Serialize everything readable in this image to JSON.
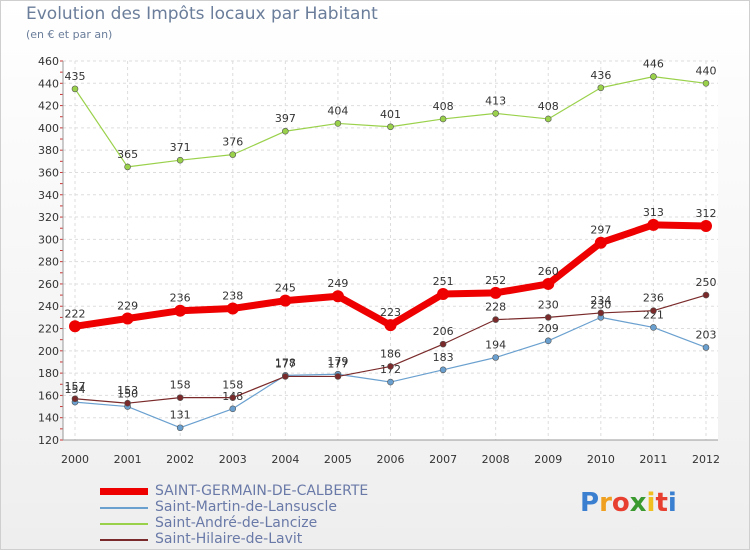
{
  "chart_data": {
    "type": "line",
    "title": "Evolution des Impôts locaux par Habitant",
    "subtitle": "(en € et par an)",
    "x": [
      "2000",
      "2001",
      "2002",
      "2003",
      "2004",
      "2005",
      "2006",
      "2007",
      "2008",
      "2009",
      "2010",
      "2011",
      "2012"
    ],
    "ylim": [
      120,
      460
    ],
    "yticks": [
      120,
      140,
      160,
      180,
      200,
      220,
      240,
      260,
      280,
      300,
      320,
      340,
      360,
      380,
      400,
      420,
      440,
      460
    ],
    "grid": true,
    "legend_position": "bottom-left",
    "series": [
      {
        "name": "SAINT-GERMAIN-DE-CALBERTE",
        "color": "#ee0000",
        "values": [
          222,
          229,
          236,
          238,
          245,
          249,
          223,
          251,
          252,
          260,
          297,
          313,
          312
        ]
      },
      {
        "name": "Saint-Martin-de-Lansuscle",
        "color": "#6aa0cf",
        "values": [
          154,
          150,
          131,
          148,
          178,
          179,
          172,
          183,
          194,
          209,
          230,
          221,
          203
        ]
      },
      {
        "name": "Saint-André-de-Lancize",
        "color": "#9ad14b",
        "values": [
          435,
          365,
          371,
          376,
          397,
          404,
          401,
          408,
          413,
          408,
          436,
          446,
          440
        ]
      },
      {
        "name": "Saint-Hilaire-de-Lavit",
        "color": "#7a2a2a",
        "values": [
          157,
          153,
          158,
          158,
          177,
          177,
          186,
          206,
          228,
          230,
          234,
          236,
          250
        ]
      }
    ]
  },
  "logo": {
    "letters": [
      "P",
      "r",
      "o",
      "x",
      "i",
      "t",
      "i"
    ],
    "colors": [
      "#3a7fd0",
      "#f0a020",
      "#e84030",
      "#3a9a30",
      "#f0c020",
      "#e84030",
      "#3a7fd0"
    ]
  }
}
